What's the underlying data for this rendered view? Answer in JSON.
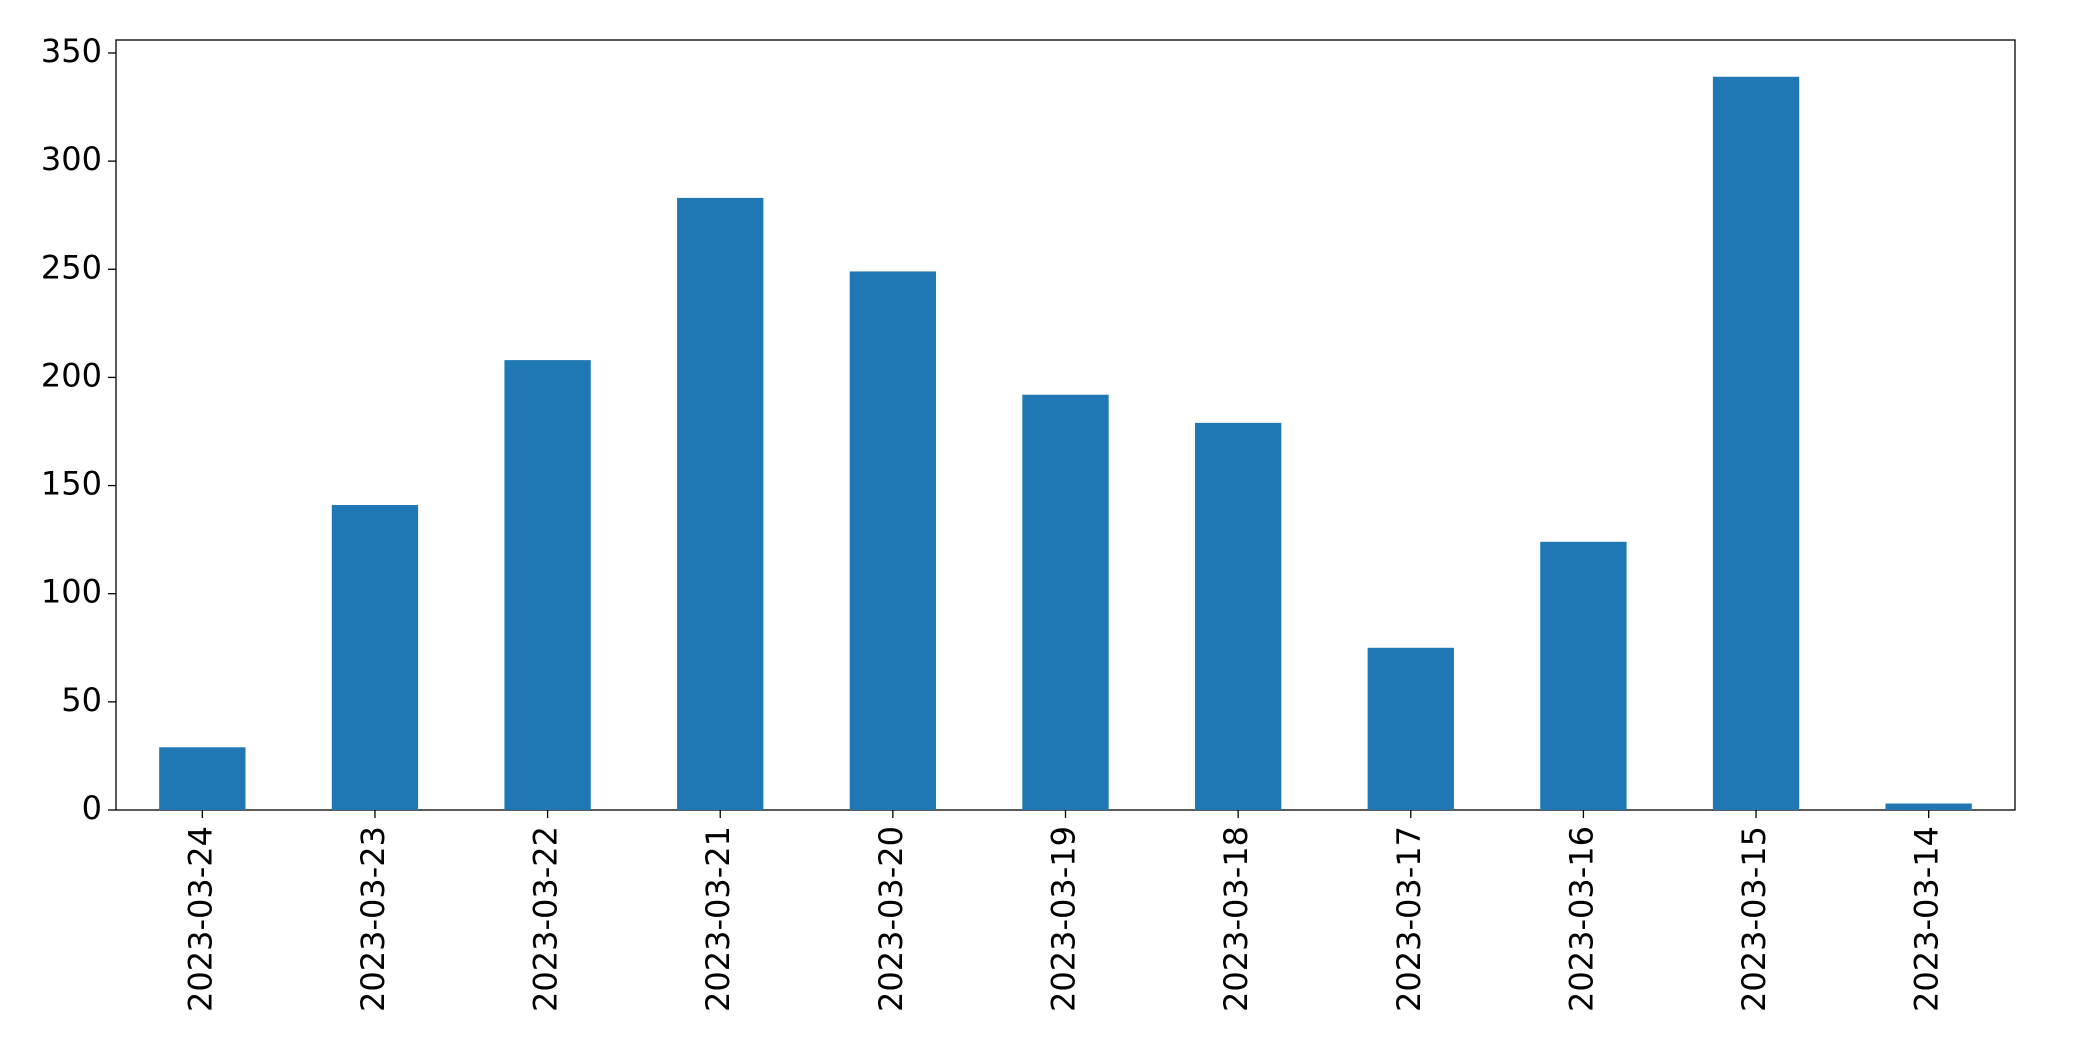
{
  "chart_data": {
    "type": "bar",
    "categories": [
      "2023-03-24",
      "2023-03-23",
      "2023-03-22",
      "2023-03-21",
      "2023-03-20",
      "2023-03-19",
      "2023-03-18",
      "2023-03-17",
      "2023-03-16",
      "2023-03-15",
      "2023-03-14"
    ],
    "values": [
      29,
      141,
      208,
      283,
      249,
      192,
      179,
      75,
      124,
      339,
      3
    ],
    "color": "#1f77b4",
    "ylim": [
      0,
      356
    ],
    "yticks": [
      0,
      50,
      100,
      150,
      200,
      250,
      300,
      350
    ],
    "grid": false
  }
}
